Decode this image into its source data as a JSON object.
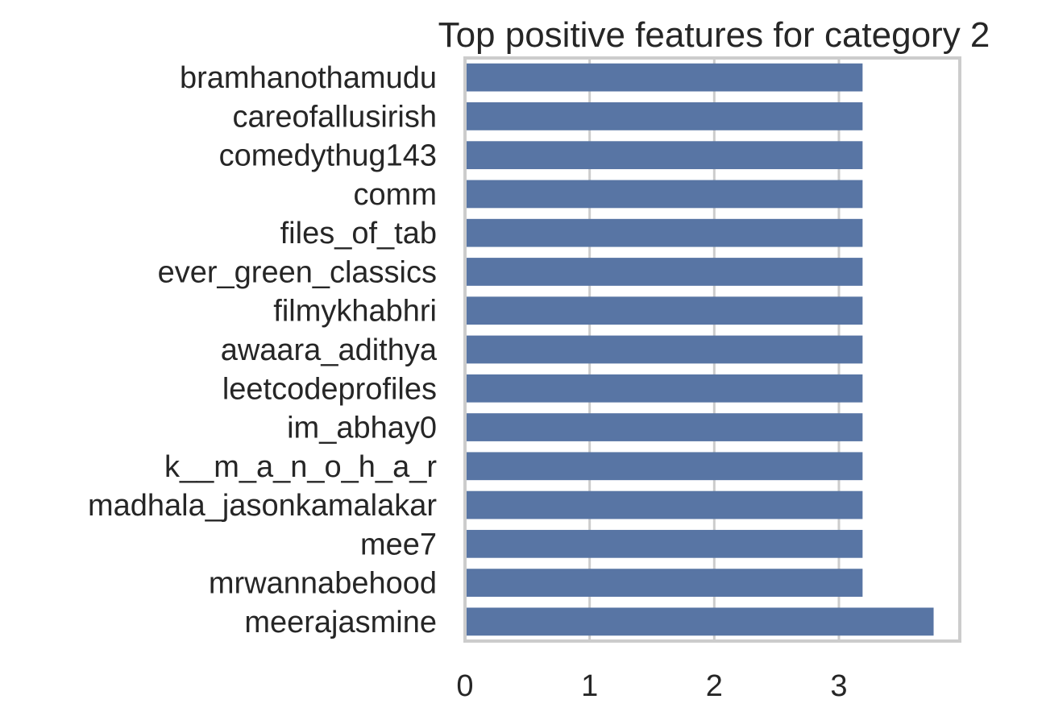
{
  "chart_data": {
    "type": "bar",
    "orientation": "horizontal",
    "title": "Top positive features for category 2",
    "xlabel": "",
    "ylabel": "",
    "categories": [
      "bramhanothamudu",
      "careofallusirish",
      "comedythug143",
      "comm",
      "files_of_tab",
      "ever_green_classics",
      "filmykhabhri",
      "awaara_adithya",
      "leetcodeprofiles",
      "im_abhay0",
      "k__m_a_n_o_h_a_r",
      "madhala_jasonkamalakar",
      "mee7",
      "mrwannabehood",
      "meerajasmine"
    ],
    "values": [
      3.19,
      3.19,
      3.19,
      3.19,
      3.19,
      3.19,
      3.19,
      3.19,
      3.19,
      3.19,
      3.19,
      3.19,
      3.19,
      3.19,
      3.76
    ],
    "xlim": [
      0,
      3.97
    ],
    "xticks": [
      "0",
      "1",
      "2",
      "3"
    ],
    "grid": true,
    "bar_color": "#5875a4",
    "grid_color": "#cccccc",
    "frame_color": "#cccccc"
  }
}
